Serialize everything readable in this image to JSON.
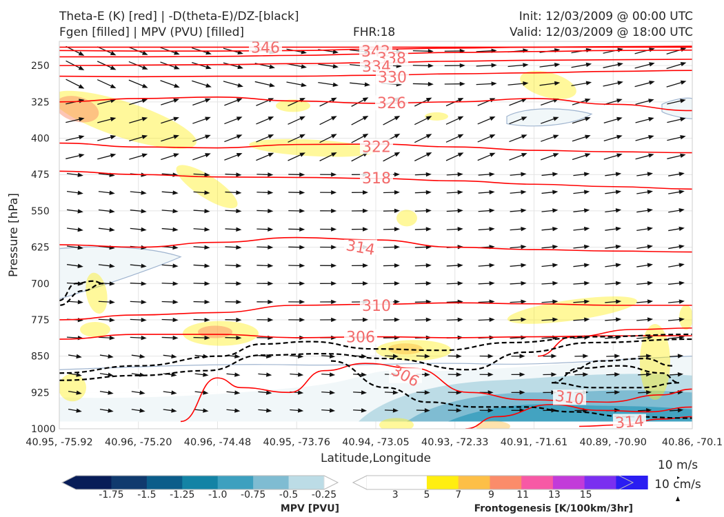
{
  "header": {
    "title_line1": "Theta-E (K) [red] | -D(theta-E)/DZ-[black]",
    "title_line2": "Fgen [filled] | MPV (PVU) [filled]",
    "fhr": "FHR:18",
    "init": "Init: 12/03/2009 @ 00:00 UTC",
    "valid": "Valid: 12/03/2009 @ 18:00 UTC"
  },
  "colors": {
    "theta_e": "#ff0000",
    "theta_e_label": "#f26b6b",
    "ddz": "#000000",
    "wind": "#111111",
    "mpv_scale": [
      "#081d58",
      "#103a6e",
      "#0b5d8a",
      "#1383a5",
      "#3da0bf",
      "#7fbcd2",
      "#bcdce6",
      "#ffffff"
    ],
    "fgen_scale": [
      "#ffffff",
      "#ffee10",
      "#fdbf47",
      "#fb8c6a",
      "#f759a5",
      "#c23bd9",
      "#7a2ff0",
      "#2a1df2"
    ]
  },
  "chart_data": {
    "type": "cross-section",
    "xlabel": "Latitude,Longitude",
    "ylabel": "Pressure [hPa]",
    "ylim": [
      1000,
      200
    ],
    "xticks": [
      "40.95, -75.92",
      "40.96, -75.20",
      "40.96, -74.48",
      "40.95, -73.76",
      "40.94, -73.05",
      "40.93, -72.33",
      "40.91, -71.61",
      "40.89, -70.90",
      "40.86, -70.1"
    ],
    "yticks": [
      250,
      325,
      400,
      475,
      550,
      625,
      700,
      775,
      850,
      925,
      1000
    ],
    "theta_e_labels": [
      "346",
      "342",
      "338",
      "334",
      "330",
      "326",
      "322",
      "318",
      "314",
      "310",
      "306",
      "306",
      "310",
      "314"
    ],
    "theta_e_contours": [
      {
        "k": 346,
        "y": [
          212,
          212,
          212,
          212,
          212,
          212,
          212,
          212,
          212
        ]
      },
      {
        "k": 342,
        "y": [
          219,
          220,
          220,
          219,
          216,
          214,
          212,
          211,
          210
        ]
      },
      {
        "k": 338,
        "y": [
          232,
          232,
          231,
          229,
          226,
          223,
          221,
          219,
          218
        ]
      },
      {
        "k": 334,
        "y": [
          250,
          249,
          248,
          246,
          244,
          241,
          239,
          238,
          237
        ]
      },
      {
        "k": 330,
        "y": [
          272,
          273,
          272,
          272,
          270,
          267,
          265,
          262,
          260
        ]
      },
      {
        "k": 326,
        "y": [
          325,
          318,
          315,
          323,
          328,
          325,
          318,
          330,
          343
        ]
      },
      {
        "k": 322,
        "y": [
          410,
          418,
          420,
          413,
          412,
          418,
          425,
          428,
          430
        ]
      },
      {
        "k": 318,
        "y": [
          468,
          475,
          480,
          481,
          483,
          488,
          495,
          500,
          505
        ]
      },
      {
        "k": 314,
        "y": [
          620,
          625,
          615,
          605,
          610,
          625,
          630,
          633,
          635
        ]
      },
      {
        "k": 310,
        "y": [
          775,
          765,
          760,
          745,
          743,
          740,
          742,
          745,
          745
        ]
      },
      {
        "k": 306,
        "y": [
          815,
          805,
          805,
          812,
          810,
          812,
          810,
          808,
          808
        ]
      }
    ],
    "mpv_colorbar": {
      "label": "MPV [PVU]",
      "ticks": [
        "-1.75",
        "-1.5",
        "-1.25",
        "-1.0",
        "-0.75",
        "-0.5",
        "-0.25"
      ]
    },
    "fgen_colorbar": {
      "label": "Frontogenesis [K/100km/3hr]",
      "ticks": [
        "3",
        "5",
        "7",
        "9",
        "11",
        "13",
        "15"
      ]
    },
    "wind_key": {
      "label1": "10 m/s",
      "label2": "10 cm/s"
    },
    "grid": true,
    "legend": "none"
  }
}
